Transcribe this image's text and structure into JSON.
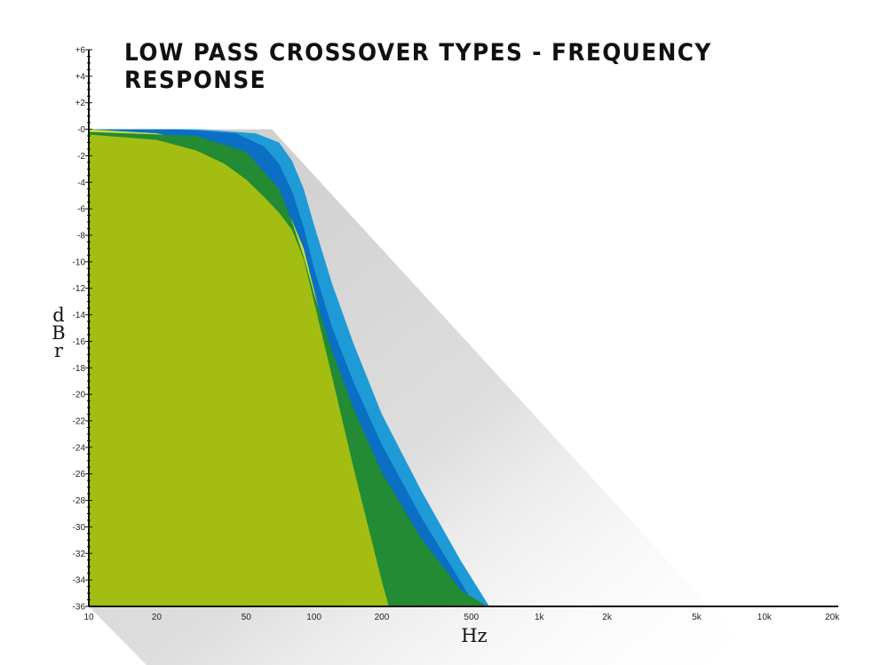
{
  "title": "LOW PASS CROSSOVER TYPES - FREQUENCY RESPONSE",
  "chart_data": {
    "type": "area",
    "title": "LOW PASS CROSSOVER TYPES - FREQUENCY RESPONSE",
    "xlabel": "Hz",
    "ylabel_letters": [
      "d",
      "B",
      "r"
    ],
    "xscale": "log",
    "xlim": [
      10,
      22000
    ],
    "ylim": [
      -36,
      6
    ],
    "x_ticks": [
      {
        "value": 10,
        "label": "10"
      },
      {
        "value": 20,
        "label": "20"
      },
      {
        "value": 50,
        "label": "50"
      },
      {
        "value": 100,
        "label": "100"
      },
      {
        "value": 200,
        "label": "200"
      },
      {
        "value": 500,
        "label": "500"
      },
      {
        "value": 1000,
        "label": "1k"
      },
      {
        "value": 2000,
        "label": "2k"
      },
      {
        "value": 5000,
        "label": "5k"
      },
      {
        "value": 10000,
        "label": "10k"
      },
      {
        "value": 20000,
        "label": "20k"
      }
    ],
    "y_ticks": [
      {
        "value": 6,
        "label": "+6"
      },
      {
        "value": 4,
        "label": "+4"
      },
      {
        "value": 2,
        "label": "+2"
      },
      {
        "value": 0,
        "label": "-0"
      },
      {
        "value": -2,
        "label": "-2"
      },
      {
        "value": -4,
        "label": "-4"
      },
      {
        "value": -6,
        "label": "-6"
      },
      {
        "value": -8,
        "label": "-8"
      },
      {
        "value": -10,
        "label": "-10"
      },
      {
        "value": -12,
        "label": "-12"
      },
      {
        "value": -14,
        "label": "-14"
      },
      {
        "value": -16,
        "label": "-16"
      },
      {
        "value": -18,
        "label": "-18"
      },
      {
        "value": -20,
        "label": "-20"
      },
      {
        "value": -22,
        "label": "-22"
      },
      {
        "value": -24,
        "label": "-24"
      },
      {
        "value": -26,
        "label": "-26"
      },
      {
        "value": -28,
        "label": "-28"
      },
      {
        "value": -30,
        "label": "-30"
      },
      {
        "value": -32,
        "label": "-32"
      },
      {
        "value": -34,
        "label": "-34"
      },
      {
        "value": -36,
        "label": "-36"
      }
    ],
    "series": [
      {
        "color": "#1e9bd7",
        "points": [
          [
            10,
            0
          ],
          [
            30,
            0
          ],
          [
            55,
            -0.3
          ],
          [
            70,
            -1
          ],
          [
            80,
            -2.4
          ],
          [
            90,
            -4.5
          ],
          [
            100,
            -7.2
          ],
          [
            120,
            -11.6
          ],
          [
            150,
            -16.2
          ],
          [
            200,
            -21.5
          ],
          [
            300,
            -27.3
          ],
          [
            450,
            -32.6
          ],
          [
            600,
            -36
          ]
        ]
      },
      {
        "color": "#0b6fc4",
        "points": [
          [
            10,
            0
          ],
          [
            25,
            0
          ],
          [
            45,
            -0.3
          ],
          [
            60,
            -1.3
          ],
          [
            70,
            -2.6
          ],
          [
            80,
            -4.7
          ],
          [
            90,
            -7.4
          ],
          [
            100,
            -10.5
          ],
          [
            120,
            -14.9
          ],
          [
            150,
            -19.1
          ],
          [
            200,
            -23.8
          ],
          [
            300,
            -29.3
          ],
          [
            450,
            -34.2
          ],
          [
            520,
            -36
          ]
        ]
      },
      {
        "color": "#cadb3d",
        "points": [
          [
            10,
            0
          ],
          [
            20,
            -0.3
          ],
          [
            30,
            -0.9
          ],
          [
            40,
            -1.8
          ],
          [
            50,
            -3
          ],
          [
            60,
            -4.4
          ],
          [
            70,
            -5.6
          ],
          [
            80,
            -6.9
          ],
          [
            90,
            -9
          ],
          [
            100,
            -12.1
          ],
          [
            120,
            -17.6
          ],
          [
            150,
            -24.7
          ],
          [
            200,
            -33.7
          ],
          [
            215,
            -36
          ]
        ]
      },
      {
        "color": "#228b33",
        "points": [
          [
            10,
            -0.2
          ],
          [
            30,
            -0.5
          ],
          [
            50,
            -1.7
          ],
          [
            70,
            -4.5
          ],
          [
            80,
            -7
          ],
          [
            90,
            -9.6
          ],
          [
            100,
            -12.4
          ],
          [
            120,
            -16.7
          ],
          [
            150,
            -21.1
          ],
          [
            200,
            -25.9
          ],
          [
            300,
            -30.9
          ],
          [
            450,
            -34.8
          ],
          [
            590,
            -36
          ]
        ]
      },
      {
        "color": "#a3bd12",
        "points": [
          [
            10,
            -0.4
          ],
          [
            20,
            -0.8
          ],
          [
            30,
            -1.6
          ],
          [
            40,
            -2.6
          ],
          [
            50,
            -3.8
          ],
          [
            60,
            -5.1
          ],
          [
            70,
            -6.3
          ],
          [
            80,
            -7.6
          ],
          [
            90,
            -9.8
          ],
          [
            100,
            -13
          ],
          [
            120,
            -18.6
          ],
          [
            150,
            -25.6
          ],
          [
            200,
            -34.1
          ],
          [
            215,
            -36
          ]
        ]
      }
    ]
  }
}
